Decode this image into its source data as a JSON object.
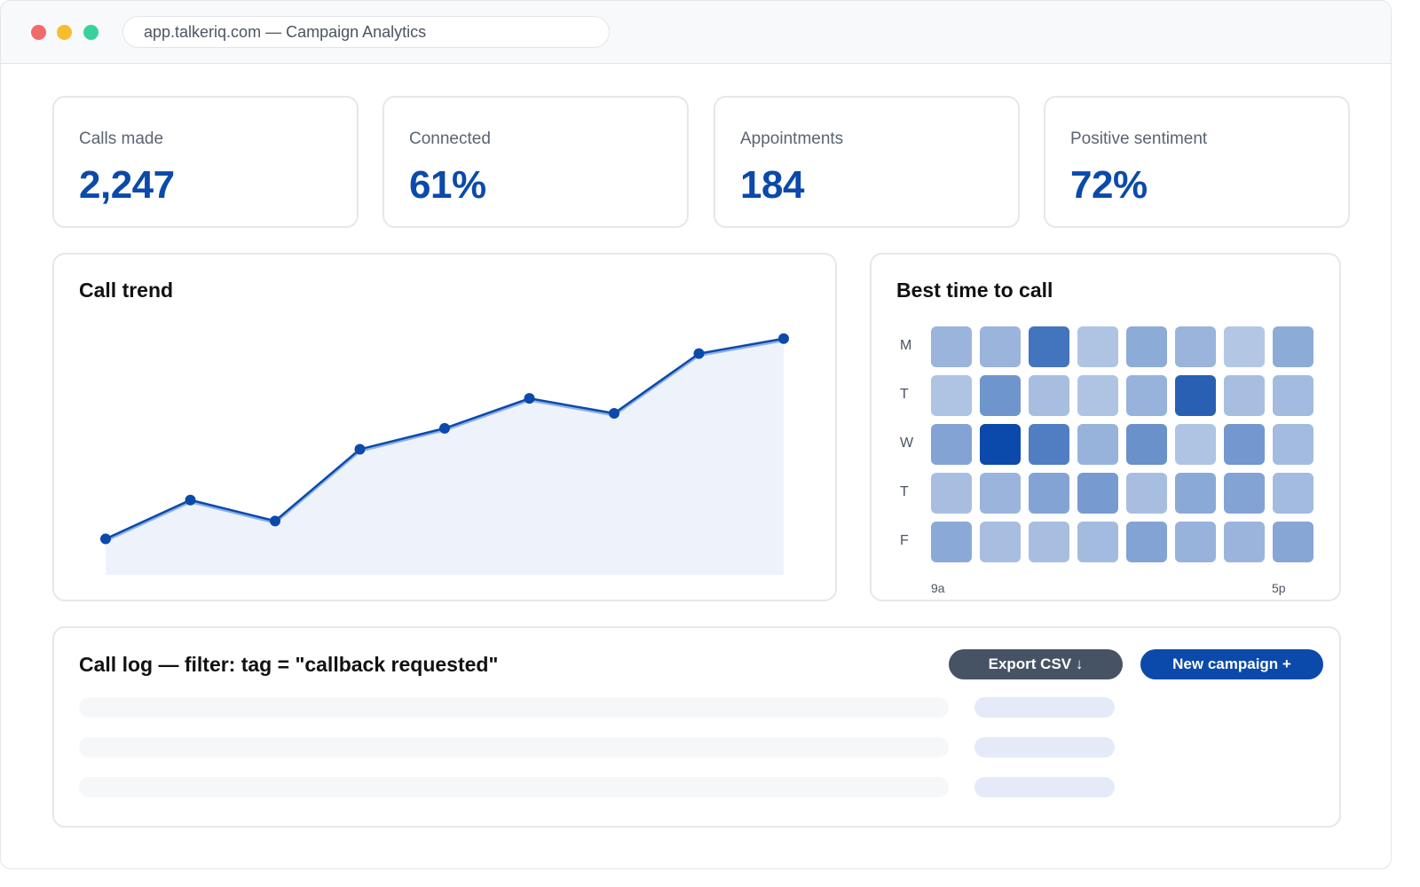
{
  "browser": {
    "url_text": "app.talkeriq.com — Campaign Analytics"
  },
  "kpis": [
    {
      "label": "Calls made",
      "value": "2,247"
    },
    {
      "label": "Connected",
      "value": "61%"
    },
    {
      "label": "Appointments",
      "value": "184"
    },
    {
      "label": "Positive sentiment",
      "value": "72%"
    }
  ],
  "colors": {
    "accent": "#0b4aaa",
    "area_fill": "#eef3fb",
    "export_button": "#465364"
  },
  "trend": {
    "title": "Call trend"
  },
  "heatmap": {
    "title": "Best time to call",
    "x_start_label": "9a",
    "x_end_label": "5p"
  },
  "call_log": {
    "title": "Call log — filter: tag = \"callback requested\"",
    "export_label": "Export CSV ↓",
    "new_campaign_label": "New campaign +",
    "placeholder_rows": 3
  },
  "chart_data": [
    {
      "type": "area",
      "title": "Call trend",
      "x": [
        1,
        2,
        3,
        4,
        5,
        6,
        7,
        8,
        9
      ],
      "values": [
        12,
        25,
        18,
        42,
        49,
        59,
        54,
        74,
        79
      ],
      "ylim": [
        0,
        100
      ],
      "grid": false,
      "markers": true
    },
    {
      "type": "heatmap",
      "title": "Best time to call",
      "rows": [
        "M",
        "T",
        "W",
        "T",
        "F"
      ],
      "x_tick_labels": [
        "9a",
        "5p"
      ],
      "values": [
        [
          0.28,
          0.28,
          0.72,
          0.18,
          0.35,
          0.28,
          0.16,
          0.35
        ],
        [
          0.18,
          0.5,
          0.22,
          0.18,
          0.3,
          0.85,
          0.22,
          0.24
        ],
        [
          0.4,
          1.0,
          0.65,
          0.3,
          0.52,
          0.18,
          0.48,
          0.24
        ],
        [
          0.22,
          0.28,
          0.4,
          0.46,
          0.22,
          0.36,
          0.4,
          0.24
        ],
        [
          0.36,
          0.22,
          0.22,
          0.24,
          0.4,
          0.3,
          0.28,
          0.38
        ]
      ]
    }
  ]
}
